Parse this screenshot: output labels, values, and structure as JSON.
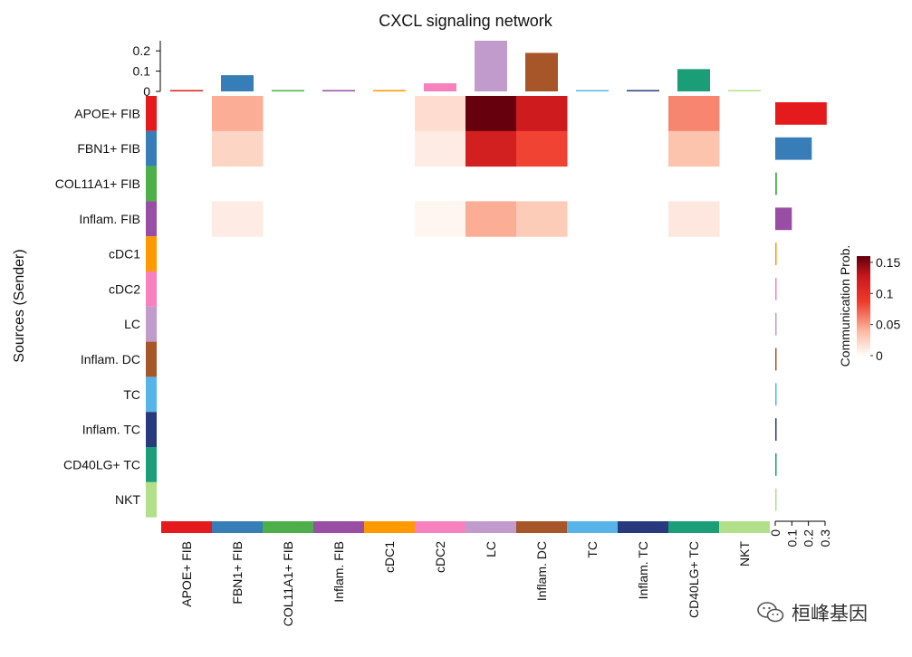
{
  "chart_data": {
    "type": "heatmap",
    "title": "CXCL signaling network",
    "ylabel": "Sources (Sender)",
    "legend_title": "Communication Prob.",
    "legend_ticks": [
      "0.15",
      "0.1",
      "0.05",
      "0"
    ],
    "color_range": [
      0,
      0.16
    ],
    "top_bar_ticks": [
      "0.2",
      "0.1",
      "0"
    ],
    "top_bar_range": [
      0,
      0.25
    ],
    "right_bar_ticks": [
      "0",
      "0.1",
      "0.2",
      "0.3"
    ],
    "right_bar_range": [
      0,
      0.3
    ],
    "senders": [
      "APOE+ FIB",
      "FBN1+ FIB",
      "COL11A1+ FIB",
      "Inflam. FIB",
      "cDC1",
      "cDC2",
      "LC",
      "Inflam. DC",
      "TC",
      "Inflam. TC",
      "CD40LG+ TC",
      "NKT"
    ],
    "receivers": [
      "APOE+ FIB",
      "FBN1+ FIB",
      "COL11A1+ FIB",
      "Inflam. FIB",
      "cDC1",
      "cDC2",
      "LC",
      "Inflam. DC",
      "TC",
      "Inflam. TC",
      "CD40LG+ TC",
      "NKT"
    ],
    "group_colors": [
      "#E41A1C",
      "#377EB8",
      "#4DAF4A",
      "#984EA3",
      "#FF9900",
      "#F781BF",
      "#C19BCB",
      "#A65628",
      "#56B4E9",
      "#283A7D",
      "#1B9E77",
      "#B2DF8A"
    ],
    "values": [
      [
        0,
        0.045,
        0,
        0,
        0,
        0.02,
        0.16,
        0.125,
        0,
        0,
        0.06,
        0
      ],
      [
        0,
        0.025,
        0,
        0,
        0,
        0.012,
        0.12,
        0.085,
        0,
        0,
        0.035,
        0
      ],
      [
        0,
        0,
        0,
        0,
        0,
        0,
        0,
        0,
        0,
        0,
        0,
        0
      ],
      [
        0,
        0.012,
        0,
        0,
        0,
        0.006,
        0.045,
        0.03,
        0,
        0,
        0.014,
        0
      ],
      [
        0,
        0,
        0,
        0,
        0,
        0,
        0,
        0,
        0,
        0,
        0,
        0
      ],
      [
        0,
        0,
        0,
        0,
        0,
        0,
        0,
        0,
        0,
        0,
        0,
        0
      ],
      [
        0,
        0,
        0,
        0,
        0,
        0,
        0,
        0,
        0,
        0,
        0,
        0
      ],
      [
        0,
        0,
        0,
        0,
        0,
        0,
        0,
        0,
        0,
        0,
        0,
        0
      ],
      [
        0,
        0,
        0,
        0,
        0,
        0,
        0,
        0,
        0,
        0,
        0,
        0
      ],
      [
        0,
        0,
        0,
        0,
        0,
        0,
        0,
        0,
        0,
        0,
        0,
        0
      ],
      [
        0,
        0,
        0,
        0,
        0,
        0,
        0,
        0,
        0,
        0,
        0,
        0
      ],
      [
        0,
        0,
        0,
        0,
        0,
        0,
        0,
        0,
        0,
        0,
        0,
        0
      ]
    ],
    "receiver_totals": [
      0.003,
      0.08,
      0.002,
      0.002,
      0.002,
      0.04,
      0.25,
      0.19,
      0.001,
      0.002,
      0.11,
      0.001
    ],
    "sender_totals": [
      0.31,
      0.22,
      0.01,
      0.1,
      0.005,
      0.005,
      0.005,
      0.005,
      0.005,
      0.005,
      0.005,
      0.005
    ]
  },
  "watermark": {
    "text": "桓峰基因",
    "icon": "wechat-icon"
  }
}
